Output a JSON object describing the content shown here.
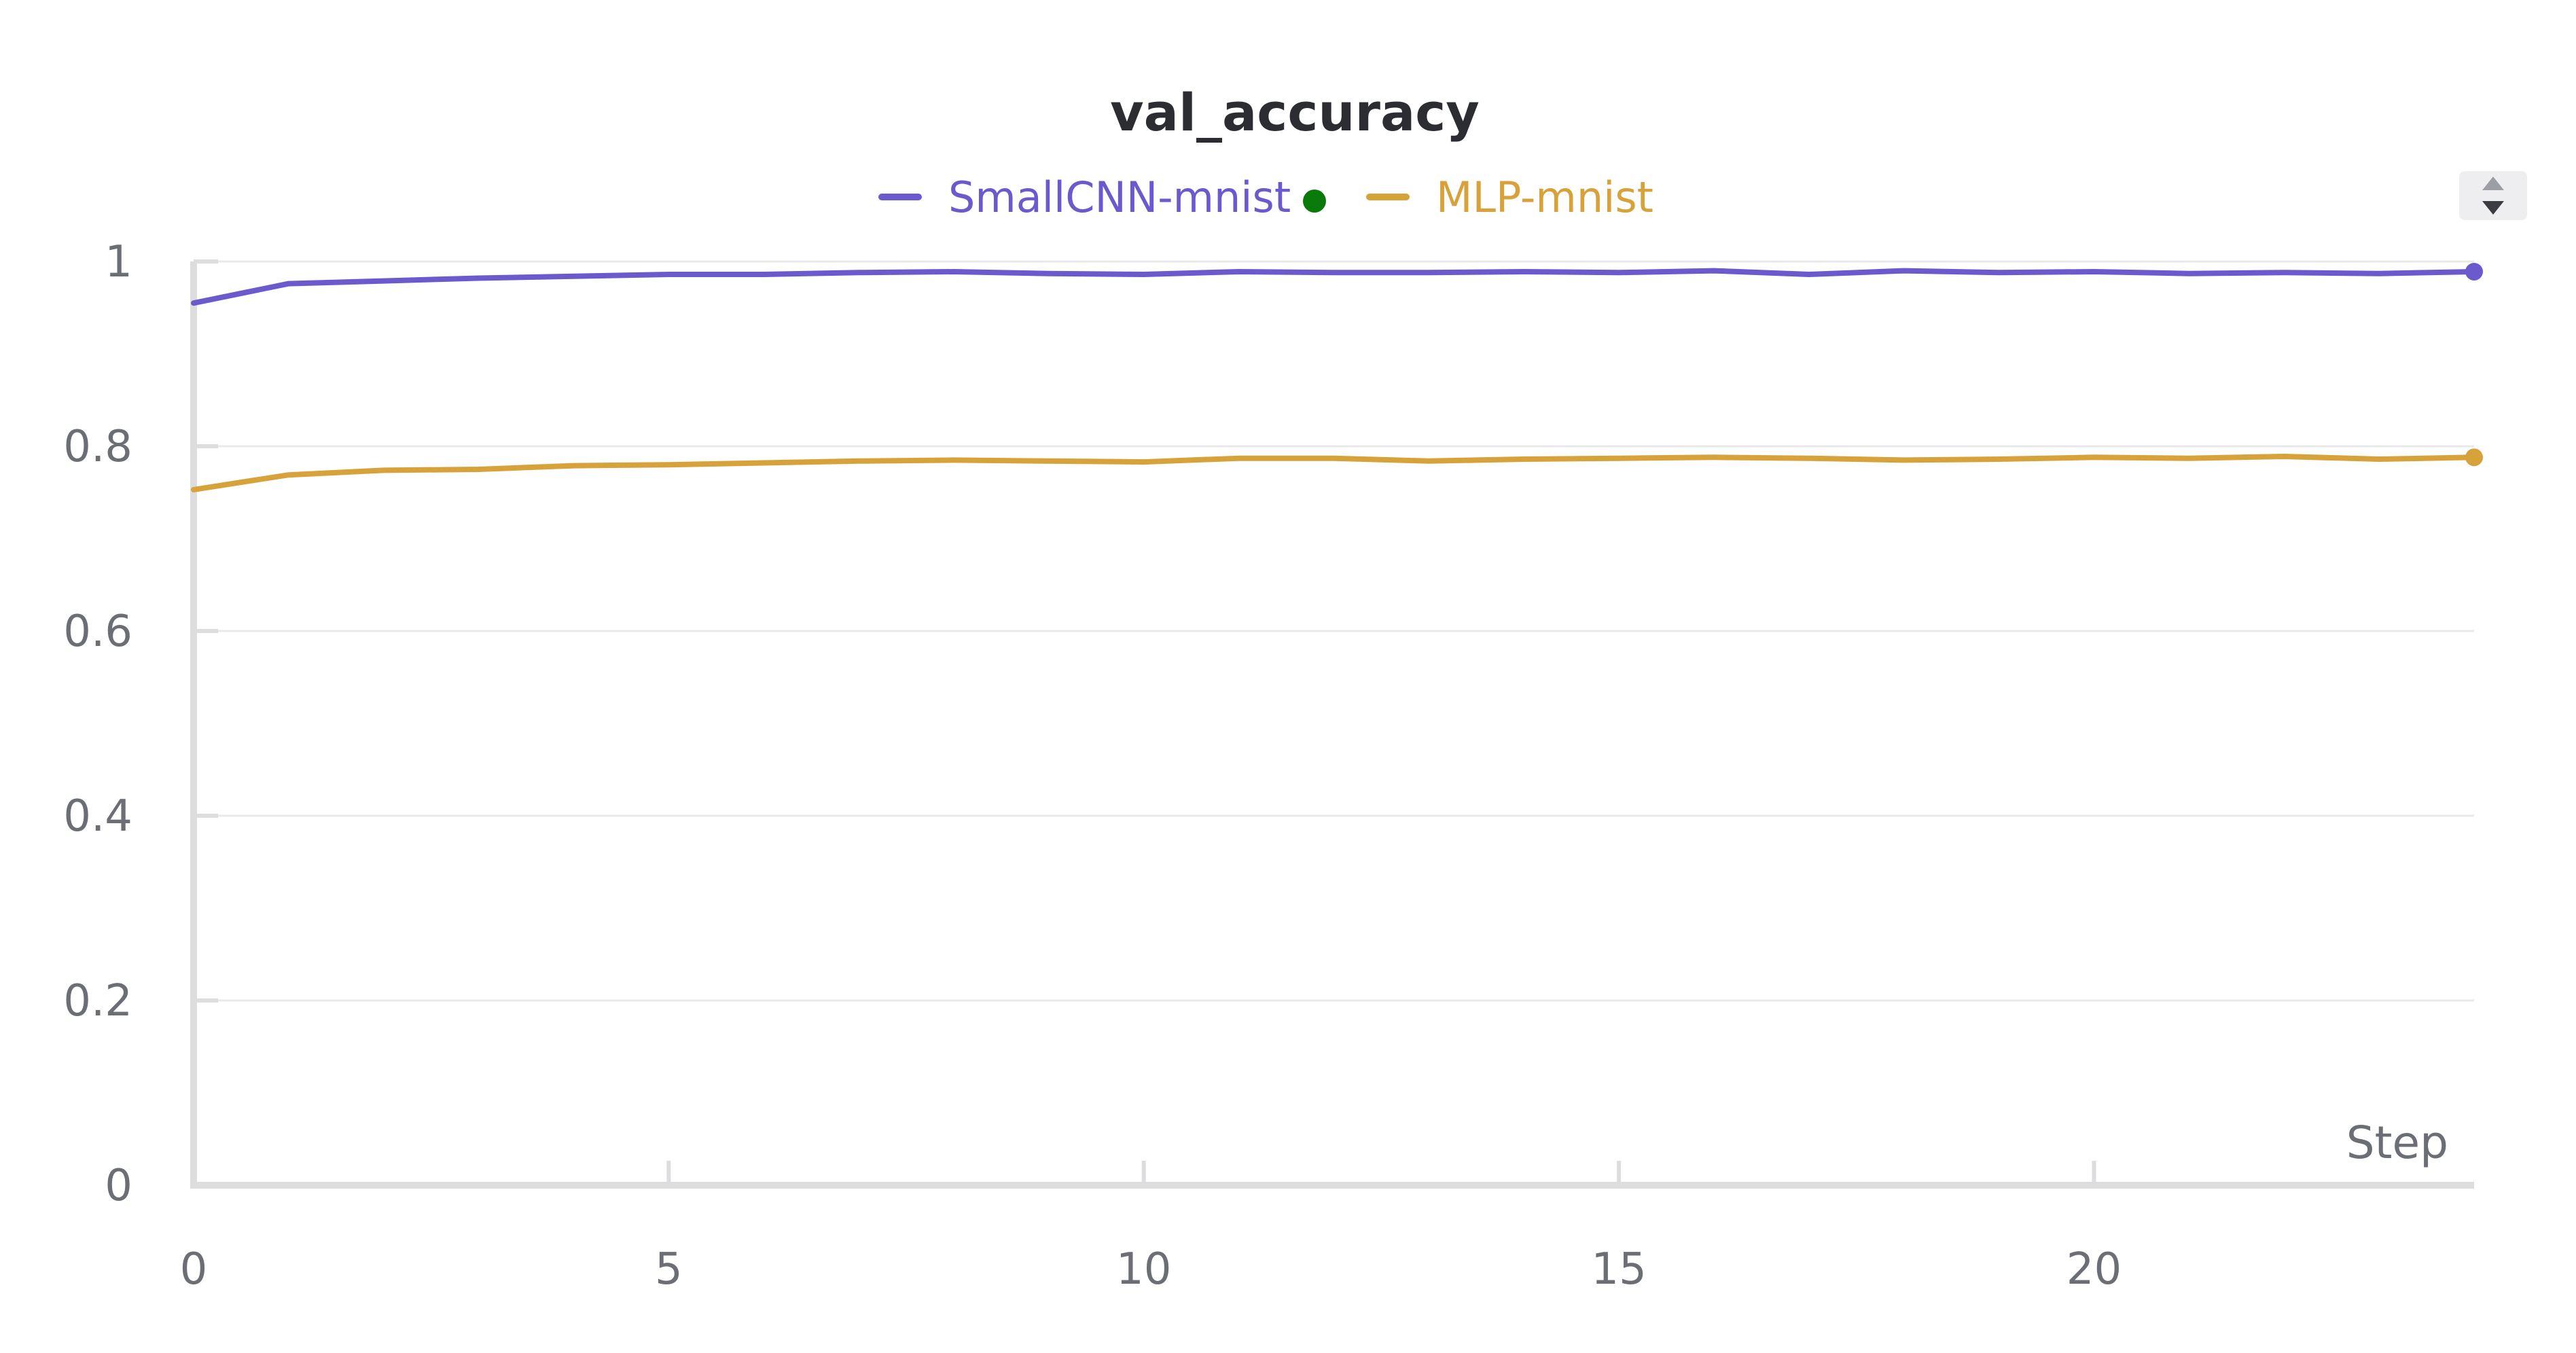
{
  "chart_data": {
    "type": "line",
    "title": "val_accuracy",
    "xlabel": "Step",
    "ylabel": "",
    "xlim": [
      0,
      24
    ],
    "ylim": [
      0,
      1
    ],
    "x_ticks": [
      0,
      5,
      10,
      15,
      20
    ],
    "y_ticks": [
      0,
      0.2,
      0.4,
      0.6,
      0.8,
      1
    ],
    "y_tick_labels": [
      "0",
      "0.2",
      "0.4",
      "0.6",
      "0.8",
      "1"
    ],
    "x_tick_labels": [
      "0",
      "5",
      "10",
      "15",
      "20"
    ],
    "grid": true,
    "legend_position": "top-center",
    "x": [
      0,
      1,
      2,
      3,
      4,
      5,
      6,
      7,
      8,
      9,
      10,
      11,
      12,
      13,
      14,
      15,
      16,
      17,
      18,
      19,
      20,
      21,
      22,
      23,
      24
    ],
    "series": [
      {
        "name": "SmallCNN-mnist",
        "color": "#6a5acd",
        "marker_status_color": "#0a7a0a",
        "values": [
          0.955,
          0.976,
          0.979,
          0.982,
          0.984,
          0.986,
          0.986,
          0.988,
          0.989,
          0.987,
          0.986,
          0.989,
          0.988,
          0.988,
          0.989,
          0.988,
          0.99,
          0.986,
          0.99,
          0.988,
          0.989,
          0.987,
          0.988,
          0.987,
          0.989
        ]
      },
      {
        "name": "MLP-mnist",
        "color": "#d8a23a",
        "values": [
          0.753,
          0.769,
          0.774,
          0.775,
          0.779,
          0.78,
          0.782,
          0.784,
          0.785,
          0.784,
          0.783,
          0.787,
          0.787,
          0.784,
          0.786,
          0.787,
          0.788,
          0.787,
          0.785,
          0.786,
          0.788,
          0.787,
          0.789,
          0.786,
          0.788
        ]
      }
    ]
  }
}
